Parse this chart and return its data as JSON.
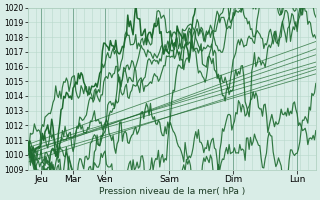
{
  "xlabel": "Pression niveau de la mer( hPa )",
  "ylim": [
    1009,
    1020
  ],
  "yticks": [
    1009,
    1010,
    1011,
    1012,
    1013,
    1014,
    1015,
    1016,
    1017,
    1018,
    1019,
    1020
  ],
  "day_labels": [
    "Jeu",
    "Mar",
    "Ven",
    "Sam",
    "Dim",
    "Lun"
  ],
  "day_positions": [
    10,
    34,
    58,
    106,
    154,
    202
  ],
  "vline_positions": [
    10,
    34,
    58,
    106,
    154,
    202
  ],
  "xlim": [
    0,
    216
  ],
  "background_color": "#d9ede7",
  "grid_color": "#b8d8cc",
  "line_color": "#1e6b30",
  "total_hours": 216
}
